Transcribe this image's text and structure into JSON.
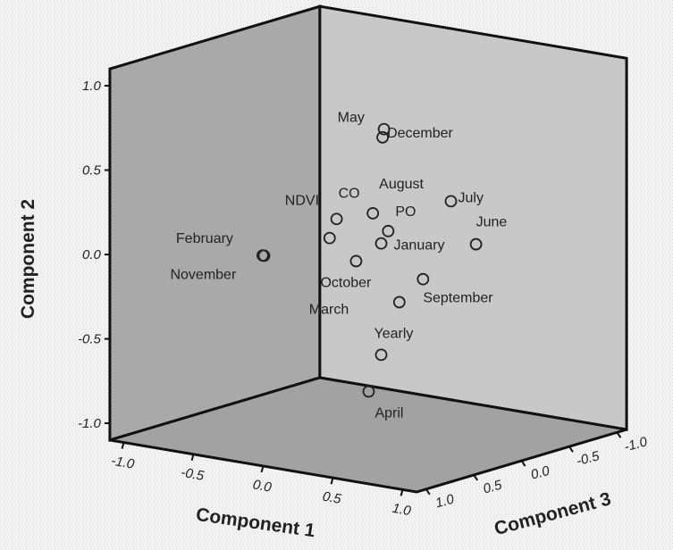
{
  "chart_data": {
    "type": "scatter3d",
    "x_label": "Component 1",
    "y_label": "Component 2",
    "z_label": "Component 3",
    "labels": [
      "May",
      "December",
      "NDVI",
      "CO",
      "August",
      "PO",
      "July",
      "June",
      "January",
      "October",
      "September",
      "March",
      "Yearly",
      "April",
      "February",
      "November"
    ],
    "x": [
      0.25,
      0.24,
      -0.14,
      -0.09,
      0.17,
      0.28,
      0.73,
      0.91,
      0.23,
      0.05,
      0.53,
      0.36,
      0.23,
      0.14,
      -0.62,
      -0.61
    ],
    "y": [
      0.78,
      0.73,
      0.08,
      0.2,
      0.27,
      0.18,
      0.42,
      0.19,
      0.1,
      -0.03,
      -0.07,
      -0.23,
      -0.56,
      -0.79,
      -0.09,
      -0.09
    ],
    "z": [
      0.2,
      0.2,
      0.2,
      0.2,
      0.2,
      0.2,
      0.2,
      0.2,
      0.2,
      0.2,
      0.2,
      0.2,
      0.2,
      0.2,
      0.2,
      0.2
    ],
    "xlim": [
      -1.1,
      1.1
    ],
    "ylim": [
      -1.1,
      1.1
    ],
    "zlim": [
      -1.1,
      1.1
    ],
    "xticks": [
      {
        "value": -1,
        "label": "-1.0"
      },
      {
        "value": -0.5,
        "label": "-0.5"
      },
      {
        "value": 0,
        "label": "0.0"
      },
      {
        "value": 0.5,
        "label": "0.5"
      },
      {
        "value": 1,
        "label": "1.0"
      }
    ],
    "yticks": [
      {
        "value": -1,
        "label": "-1.0"
      },
      {
        "value": -0.5,
        "label": "-0.5"
      },
      {
        "value": 0,
        "label": "0.0"
      },
      {
        "value": 0.5,
        "label": "0.5"
      },
      {
        "value": 1,
        "label": "1.0"
      }
    ],
    "zticks": [
      {
        "value": -1,
        "label": "-1.0"
      },
      {
        "value": -0.5,
        "label": "-0.5"
      },
      {
        "value": 0,
        "label": "0.0"
      },
      {
        "value": 0.5,
        "label": "0.5"
      },
      {
        "value": 1,
        "label": "1.0"
      }
    ]
  }
}
